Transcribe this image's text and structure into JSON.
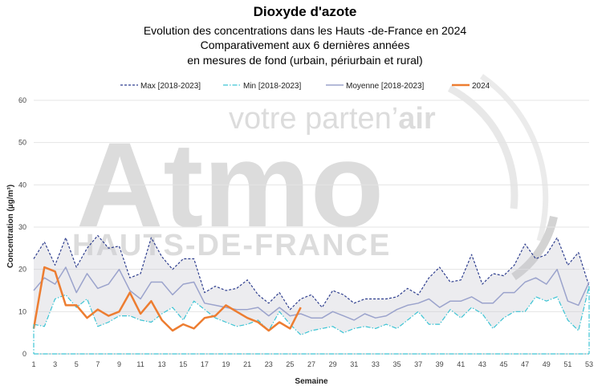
{
  "chart_data": {
    "type": "line",
    "title": "Dioxyde d'azote",
    "subtitle_lines": [
      "Evolution des concentrations dans les Hauts -de-France en 2024",
      "Comparativement aux 6 dernières années",
      "en mesures de fond (urbain, périurbain et rural)"
    ],
    "xlabel": "Semaine",
    "ylabel": "Concentration (µg/m³)",
    "ylim": [
      0,
      60
    ],
    "xlim": [
      1,
      53
    ],
    "yticks": [
      0,
      10,
      20,
      30,
      40,
      50,
      60
    ],
    "xticks": [
      1,
      3,
      5,
      7,
      9,
      11,
      13,
      15,
      17,
      19,
      21,
      23,
      25,
      27,
      29,
      31,
      33,
      35,
      37,
      39,
      41,
      43,
      45,
      47,
      49,
      51,
      53
    ],
    "grid": "horizontal",
    "legend_position": "top",
    "series": [
      {
        "name": "Max [2018-2023]",
        "style": "dashed",
        "color": "#2f3f8f",
        "x": [
          1,
          2,
          3,
          4,
          5,
          6,
          7,
          8,
          9,
          10,
          11,
          12,
          13,
          14,
          15,
          16,
          17,
          18,
          19,
          20,
          21,
          22,
          23,
          24,
          25,
          26,
          27,
          28,
          29,
          30,
          31,
          32,
          33,
          34,
          35,
          36,
          37,
          38,
          39,
          40,
          41,
          42,
          43,
          44,
          45,
          46,
          47,
          48,
          49,
          50,
          51,
          52,
          53
        ],
        "values": [
          22.5,
          26.5,
          21,
          27.5,
          20.5,
          25,
          28,
          25,
          25.5,
          18,
          19,
          27.5,
          23,
          20,
          22.5,
          22.5,
          14.5,
          16,
          15,
          15.5,
          17.5,
          14,
          12,
          14.5,
          10.5,
          13,
          14,
          11,
          15,
          14,
          12,
          13,
          13,
          13,
          13.5,
          15.5,
          14,
          18,
          20.5,
          17,
          17.5,
          23.5,
          16.5,
          19,
          18.5,
          21,
          26,
          22.5,
          23.5,
          27.5,
          21,
          24,
          16
        ]
      },
      {
        "name": "Min [2018-2023]",
        "style": "dashdot",
        "color": "#3cc4d4",
        "x": [
          1,
          2,
          3,
          4,
          5,
          6,
          7,
          8,
          9,
          10,
          11,
          12,
          13,
          14,
          15,
          16,
          17,
          18,
          19,
          20,
          21,
          22,
          23,
          24,
          25,
          26,
          27,
          28,
          29,
          30,
          31,
          32,
          33,
          34,
          35,
          36,
          37,
          38,
          39,
          40,
          41,
          42,
          43,
          44,
          45,
          46,
          47,
          48,
          49,
          50,
          51,
          52,
          53
        ],
        "values": [
          7,
          6.5,
          13,
          14,
          11,
          13,
          6.5,
          7.5,
          9,
          9,
          8,
          7.5,
          9.5,
          11,
          8,
          12.5,
          10.5,
          8.5,
          7.5,
          6.5,
          7,
          8,
          5.5,
          10,
          7,
          4.5,
          5.5,
          6,
          6.5,
          5,
          6,
          6.5,
          6,
          7,
          6,
          8,
          10,
          7,
          7,
          10.5,
          8.5,
          11,
          9.5,
          6,
          8.5,
          10,
          10,
          13.5,
          12.5,
          13.5,
          8,
          5.5,
          16
        ]
      },
      {
        "name": "Moyenne [2018-2023]",
        "style": "solid",
        "color": "#9ba3cc",
        "x": [
          1,
          2,
          3,
          4,
          5,
          6,
          7,
          8,
          9,
          10,
          11,
          12,
          13,
          14,
          15,
          16,
          17,
          18,
          19,
          20,
          21,
          22,
          23,
          24,
          25,
          26,
          27,
          28,
          29,
          30,
          31,
          32,
          33,
          34,
          35,
          36,
          37,
          38,
          39,
          40,
          41,
          42,
          43,
          44,
          45,
          46,
          47,
          48,
          49,
          50,
          51,
          52,
          53
        ],
        "values": [
          15,
          18,
          16.5,
          20.5,
          14.5,
          19,
          15.5,
          16.5,
          20,
          15,
          13,
          17,
          17,
          14,
          16.5,
          17,
          12,
          11.5,
          11,
          10.5,
          10.5,
          11,
          9,
          11,
          9,
          9.5,
          8.5,
          8.5,
          10,
          9,
          8,
          9.5,
          8.5,
          9,
          10.5,
          11.5,
          12,
          13,
          11,
          12.5,
          12.5,
          13.5,
          12,
          12,
          14.5,
          14.5,
          17,
          18,
          16.5,
          20,
          12.5,
          11.5,
          17
        ]
      },
      {
        "name": "2024",
        "style": "solid-thick",
        "color": "#ed7d31",
        "x": [
          1,
          2,
          3,
          4,
          5,
          6,
          7,
          8,
          9,
          10,
          11,
          12,
          13,
          14,
          15,
          16,
          17,
          18,
          19,
          20,
          21,
          22,
          23,
          24,
          25,
          26
        ],
        "values": [
          6,
          20.5,
          19.5,
          11.5,
          11.5,
          8.5,
          10.5,
          9,
          10,
          14.5,
          9.5,
          12.5,
          8,
          5.5,
          7,
          6,
          8.5,
          9,
          11.5,
          10,
          8.5,
          7.5,
          5.5,
          7.5,
          6,
          11
        ]
      }
    ]
  },
  "watermark": {
    "tagline_prefix": "votre parten’",
    "tagline_emphasis": "air",
    "brand": "Atmo",
    "region": "HAUTS-DE-FRANCE"
  }
}
